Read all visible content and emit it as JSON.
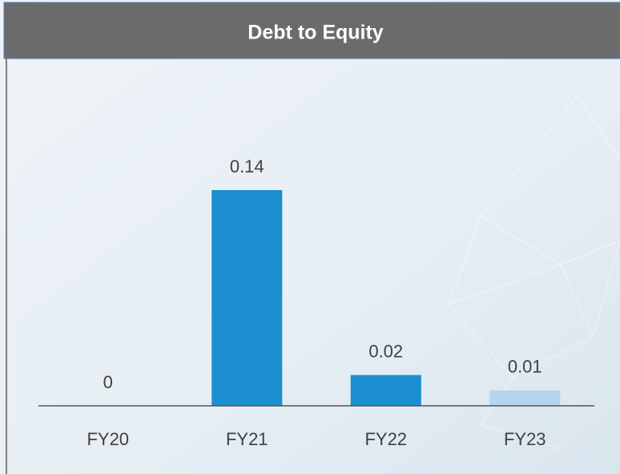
{
  "chart_data": {
    "type": "bar",
    "title": "Debt to Equity",
    "categories": [
      "FY20",
      "FY21",
      "FY22",
      "FY23"
    ],
    "values": [
      0,
      0.14,
      0.02,
      0.01
    ],
    "colors": [
      "#1b8fd0",
      "#1b8fd0",
      "#1b8fd0",
      "#b8d4ee"
    ]
  }
}
